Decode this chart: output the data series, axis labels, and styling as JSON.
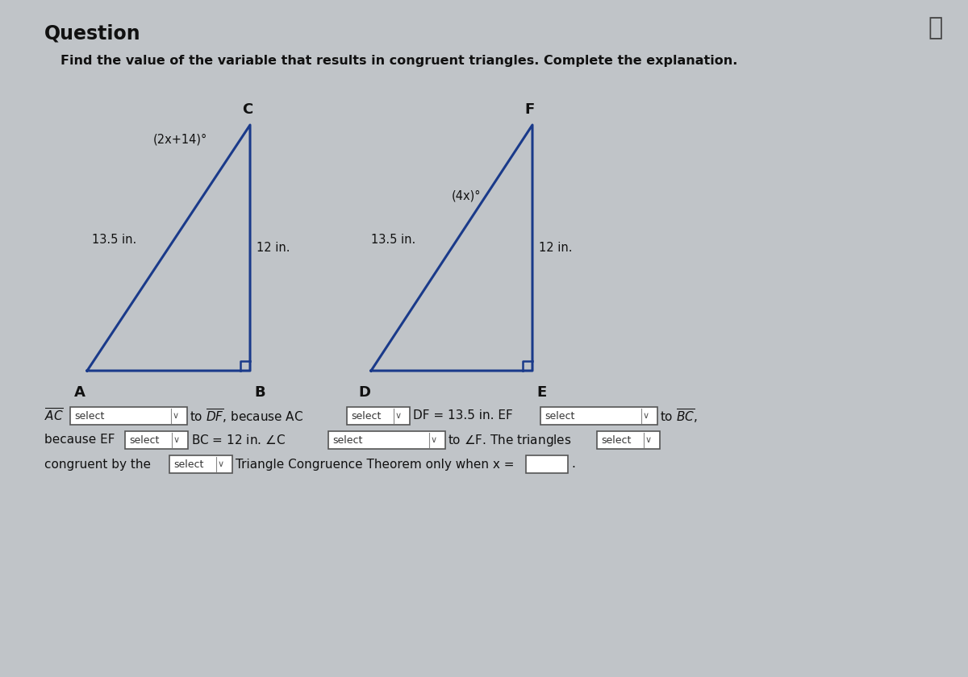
{
  "title": "Question",
  "subtitle": "Find the value of the variable that results in congruent triangles. Complete the explanation.",
  "bg_color": "#c0c4c8",
  "tri_color": "#1a3a8a",
  "font_color": "#111111",
  "triangle1": {
    "label_A": "A",
    "label_B": "B",
    "label_C": "C",
    "side_AC": "13.5 in.",
    "side_BC": "12 in.",
    "angle_label": "(2x+14)°"
  },
  "triangle2": {
    "label_D": "D",
    "label_E": "E",
    "label_F": "F",
    "side_DF": "13.5 in.",
    "side_EF": "12 in.",
    "angle_label": "(4x)°"
  }
}
